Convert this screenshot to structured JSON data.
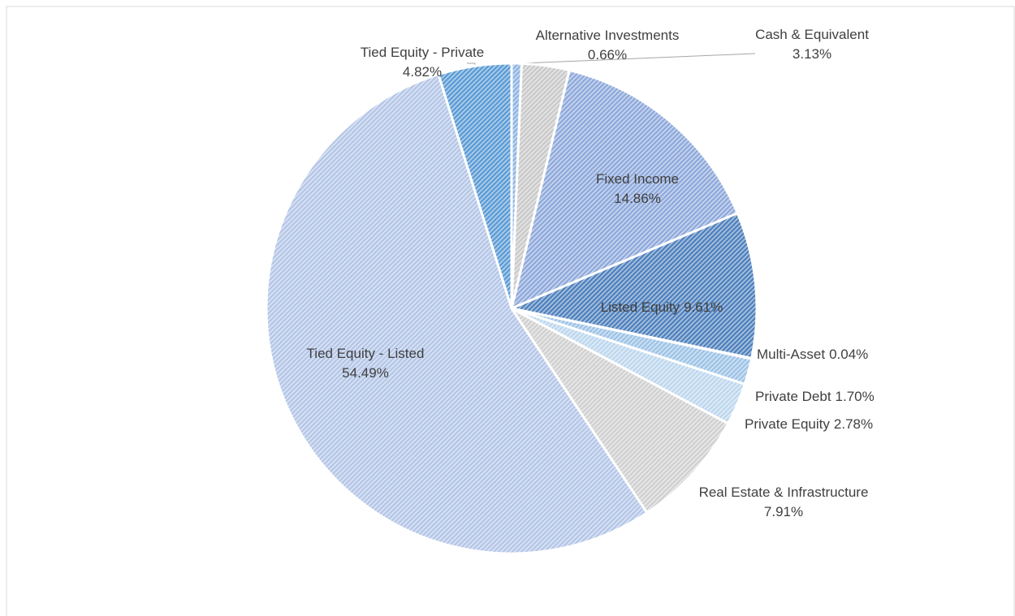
{
  "chart_data": {
    "type": "pie",
    "categories": [
      "Alternative Investments",
      "Cash & Equivalent",
      "Fixed Income",
      "Listed Equity",
      "Multi-Asset",
      "Private Debt",
      "Private Equity",
      "Real Estate & Infrastructure",
      "Tied Equity - Listed",
      "Tied Equity - Private"
    ],
    "values": [
      0.66,
      3.13,
      14.86,
      9.61,
      0.04,
      1.7,
      2.78,
      7.91,
      54.49,
      4.82
    ],
    "value_labels": [
      "0.66%",
      "3.13%",
      "14.86%",
      "9.61%",
      "0.04%",
      "1.70%",
      "2.78%",
      "7.91%",
      "54.49%",
      "4.82%"
    ],
    "colors": [
      "#8db4e2",
      "#c9c9c9",
      "#8ea9db",
      "#4f81bd",
      "#2f4f80",
      "#9dc3e6",
      "#bdd7ee",
      "#d0d0d0",
      "#b4c6e7",
      "#5b9bd5"
    ]
  }
}
